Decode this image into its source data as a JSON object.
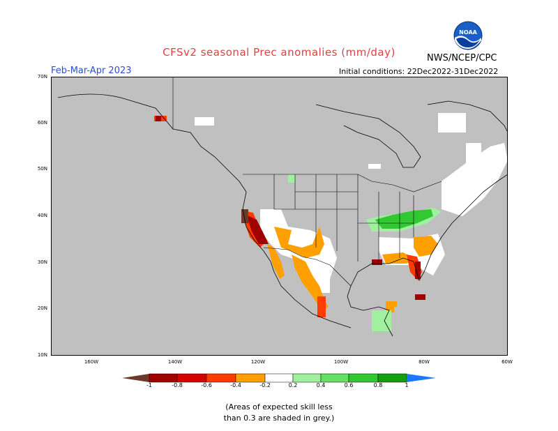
{
  "title": "CFSv2 seasonal Prec anomalies (mm/day)",
  "agency": "NWS/NCEP/CPC",
  "logo_text": "NOAA",
  "season": "Feb-Mar-Apr 2023",
  "initial_conditions": "Initial conditions: 22Dec2022-31Dec2022",
  "lat_labels": [
    "70N",
    "60N",
    "50N",
    "40N",
    "30N",
    "20N",
    "10N"
  ],
  "lon_labels": [
    "160W",
    "140W",
    "120W",
    "100W",
    "80W",
    "60W"
  ],
  "colorbar": {
    "labels": [
      "-1",
      "-0.8",
      "-0.6",
      "-0.4",
      "-0.2",
      "0.2",
      "0.4",
      "0.6",
      "0.8",
      "1"
    ],
    "colors": {
      "lt_-1": "#6b3a2a",
      "-1_-0.8": "#a00000",
      "-0.8_-0.6": "#d40000",
      "-0.6_-0.4": "#ff3c00",
      "-0.4_-0.2": "#ffa000",
      "-0.2_0.2": "#ffffff",
      "0.2_0.4": "#a0f0a0",
      "0.4_0.6": "#64e164",
      "0.6_0.8": "#32c832",
      "0.8_1": "#12a012",
      "gt_1": "#1e78ff"
    }
  },
  "skill_mask_color": "#c0c0c0",
  "note_line1": "(Areas of expected skill less",
  "note_line2": "than 0.3 are shaded in grey.)"
}
